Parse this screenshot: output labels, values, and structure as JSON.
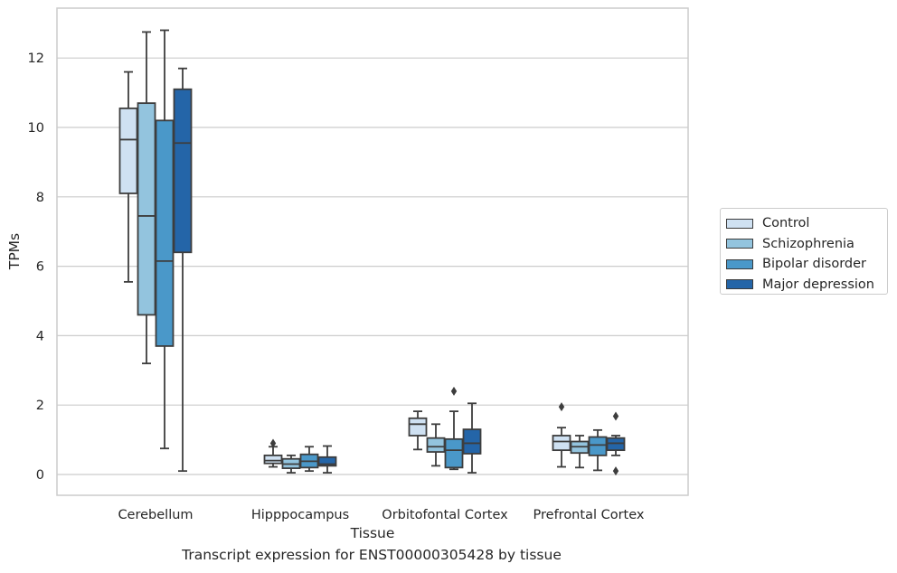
{
  "chart_data": {
    "type": "box",
    "title": "",
    "caption": "Transcript expression for ENST00000305428 by tissue",
    "xlabel": "Tissue",
    "ylabel": "TPMs",
    "ylim": [
      -0.6,
      13.5
    ],
    "yticks": [
      0,
      2,
      4,
      6,
      8,
      10,
      12
    ],
    "grid": "horizontal",
    "legend_position": "right",
    "categories": [
      "Cerebellum",
      "Hipppocampus",
      "Orbitofontal Cortex",
      "Prefrontal Cortex"
    ],
    "series": [
      {
        "name": "Control",
        "color": "#cfe1f2",
        "boxes": [
          {
            "whislo": 5.55,
            "q1": 8.1,
            "med": 9.65,
            "q3": 10.55,
            "whishi": 11.6,
            "fliers": []
          },
          {
            "whislo": 0.22,
            "q1": 0.32,
            "med": 0.4,
            "q3": 0.55,
            "whishi": 0.8,
            "fliers": [
              0.9
            ]
          },
          {
            "whislo": 0.72,
            "q1": 1.12,
            "med": 1.45,
            "q3": 1.62,
            "whishi": 1.82,
            "fliers": []
          },
          {
            "whislo": 0.22,
            "q1": 0.7,
            "med": 0.95,
            "q3": 1.12,
            "whishi": 1.35,
            "fliers": [
              1.95
            ]
          }
        ]
      },
      {
        "name": "Schizophrenia",
        "color": "#93c4de",
        "boxes": [
          {
            "whislo": 3.2,
            "q1": 4.6,
            "med": 7.45,
            "q3": 10.7,
            "whishi": 12.75,
            "fliers": []
          },
          {
            "whislo": 0.05,
            "q1": 0.18,
            "med": 0.3,
            "q3": 0.45,
            "whishi": 0.55,
            "fliers": []
          },
          {
            "whislo": 0.25,
            "q1": 0.65,
            "med": 0.8,
            "q3": 1.05,
            "whishi": 1.45,
            "fliers": []
          },
          {
            "whislo": 0.2,
            "q1": 0.62,
            "med": 0.8,
            "q3": 0.95,
            "whishi": 1.12,
            "fliers": []
          }
        ]
      },
      {
        "name": "Bipolar disorder",
        "color": "#4a98c9",
        "boxes": [
          {
            "whislo": 0.75,
            "q1": 3.7,
            "med": 6.15,
            "q3": 10.2,
            "whishi": 12.8,
            "fliers": []
          },
          {
            "whislo": 0.1,
            "q1": 0.2,
            "med": 0.38,
            "q3": 0.58,
            "whishi": 0.8,
            "fliers": []
          },
          {
            "whislo": 0.15,
            "q1": 0.2,
            "med": 0.7,
            "q3": 1.02,
            "whishi": 1.82,
            "fliers": [
              2.4
            ]
          },
          {
            "whislo": 0.12,
            "q1": 0.55,
            "med": 0.85,
            "q3": 1.08,
            "whishi": 1.28,
            "fliers": []
          }
        ]
      },
      {
        "name": "Major depression",
        "color": "#2465a8",
        "boxes": [
          {
            "whislo": 0.1,
            "q1": 6.4,
            "med": 9.55,
            "q3": 11.1,
            "whishi": 11.7,
            "fliers": []
          },
          {
            "whislo": 0.05,
            "q1": 0.25,
            "med": 0.3,
            "q3": 0.5,
            "whishi": 0.82,
            "fliers": []
          },
          {
            "whislo": 0.05,
            "q1": 0.6,
            "med": 0.9,
            "q3": 1.3,
            "whishi": 2.05,
            "fliers": []
          },
          {
            "whislo": 0.55,
            "q1": 0.7,
            "med": 0.9,
            "q3": 1.05,
            "whishi": 1.12,
            "fliers": [
              1.68,
              0.1
            ]
          }
        ]
      }
    ]
  }
}
